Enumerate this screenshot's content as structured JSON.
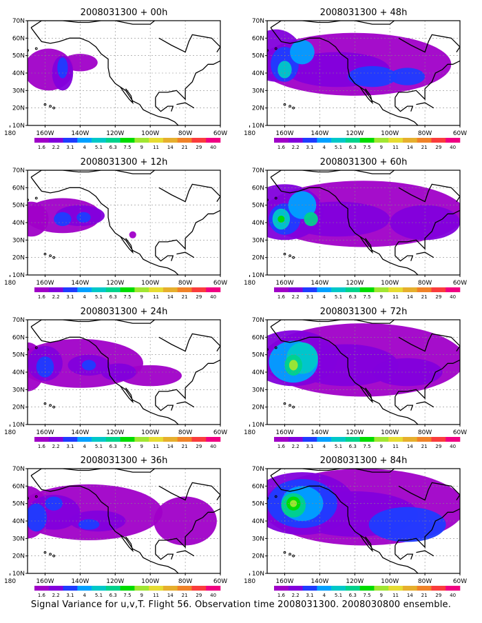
{
  "caption": "Signal Variance for u,v,T. Flight 56. Observation time 2008031300. 2008030800 ensemble.",
  "colorbar": {
    "labels": [
      "1.6",
      "2.2",
      "3.1",
      "4",
      "5.1",
      "6.3",
      "7.5",
      "9",
      "11",
      "14",
      "21",
      "29",
      "40"
    ],
    "colors": [
      "#a000c8",
      "#8200dc",
      "#1e3cff",
      "#00a0ff",
      "#00c8c8",
      "#00d28c",
      "#00dc00",
      "#a0e632",
      "#e6dc32",
      "#e6af2d",
      "#f08228",
      "#fa3c3c",
      "#f00082"
    ]
  },
  "axes": {
    "x_ticks": [
      "180",
      "160W",
      "140W",
      "120W",
      "100W",
      "80W",
      "60W"
    ],
    "y_ticks": [
      "10N",
      "20N",
      "30N",
      "40N",
      "50N",
      "60N",
      "70N"
    ],
    "lon_range": [
      -170,
      -60
    ],
    "lat_range": [
      10,
      70
    ]
  },
  "panels": [
    {
      "title": "2008031300 + 00h",
      "lead": "00h"
    },
    {
      "title": "2008031300 + 48h",
      "lead": "48h"
    },
    {
      "title": "2008031300 + 12h",
      "lead": "12h"
    },
    {
      "title": "2008031300 + 60h",
      "lead": "60h"
    },
    {
      "title": "2008031300 + 24h",
      "lead": "24h"
    },
    {
      "title": "2008031300 + 72h",
      "lead": "72h"
    },
    {
      "title": "2008031300 + 36h",
      "lead": "36h"
    },
    {
      "title": "2008031300 + 84h",
      "lead": "84h"
    }
  ],
  "chart_data": {
    "type": "heatmap",
    "title": "Signal Variance for u,v,T. Flight 56. Observation time 2008031300. 2008030800 ensemble.",
    "x": "longitude",
    "y": "latitude",
    "xlim": [
      -170,
      -60
    ],
    "ylim": [
      10,
      70
    ],
    "grid": true,
    "levels": [
      1.6,
      2.2,
      3.1,
      4,
      5.1,
      6.3,
      7.5,
      9,
      11,
      14,
      21,
      29,
      40
    ],
    "panels_by_lead": {
      "00h": {
        "peak_level": 4,
        "region": "central Pacific 25N-55N, 170W-140W, with flight track near 155W"
      },
      "12h": {
        "peak_level": 5.1,
        "region": "Pacific band 35N-55N extending to west coast"
      },
      "24h": {
        "peak_level": 5.1,
        "region": "zonal band 30N-60N from 180 to 90W"
      },
      "36h": {
        "peak_level": 5.1,
        "region": "band 28N-60N from 180 to eastern US"
      },
      "48h": {
        "peak_level": 6.3,
        "region": "band 25N-65N across Pacific and North America"
      },
      "60h": {
        "peak_level": 7.5,
        "region": "band 27N-65N, maxima near 165W 42N"
      },
      "72h": {
        "peak_level": 9,
        "region": "band 27N-68N, maximum near 155W 45N"
      },
      "84h": {
        "peak_level": 9,
        "region": "band 25N-70N, maximum near 155W 50N"
      }
    }
  }
}
